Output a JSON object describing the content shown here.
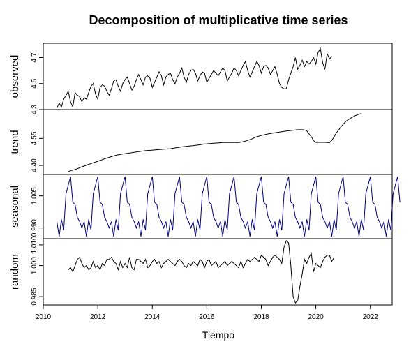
{
  "chart_data": {
    "type": "line",
    "title": "Decomposition of multiplicative time series",
    "xlabel": "Tiempo",
    "xlim": [
      2010,
      2022.8
    ],
    "x_ticks": [
      "2010",
      "2012",
      "2014",
      "2016",
      "2018",
      "2020",
      "2022"
    ],
    "x_tick_values": [
      2010,
      2012,
      2014,
      2016,
      2018,
      2020,
      2022
    ],
    "series_start": 2010.5,
    "series_frequency": 12,
    "panels": [
      {
        "name": "observed",
        "ylim": [
          4.3,
          4.81
        ],
        "y_ticks": [
          "4.3",
          "4.5",
          "4.7"
        ],
        "y_tick_values": [
          4.3,
          4.5,
          4.7
        ],
        "line_color": "#000000",
        "values": [
          4.31,
          4.35,
          4.32,
          4.38,
          4.41,
          4.44,
          4.36,
          4.32,
          4.43,
          4.41,
          4.4,
          4.36,
          4.39,
          4.38,
          4.43,
          4.48,
          4.5,
          4.42,
          4.38,
          4.47,
          4.49,
          4.48,
          4.44,
          4.41,
          4.46,
          4.52,
          4.53,
          4.48,
          4.44,
          4.5,
          4.53,
          4.55,
          4.5,
          4.45,
          4.48,
          4.53,
          4.57,
          4.53,
          4.49,
          4.55,
          4.56,
          4.54,
          4.47,
          4.51,
          4.55,
          4.59,
          4.56,
          4.49,
          4.55,
          4.57,
          4.58,
          4.53,
          4.5,
          4.55,
          4.58,
          4.62,
          4.55,
          4.51,
          4.57,
          4.6,
          4.61,
          4.58,
          4.52,
          4.56,
          4.59,
          4.58,
          4.51,
          4.54,
          4.57,
          4.6,
          4.58,
          4.56,
          4.59,
          4.62,
          4.6,
          4.52,
          4.55,
          4.58,
          4.62,
          4.6,
          4.56,
          4.6,
          4.64,
          4.67,
          4.6,
          4.55,
          4.59,
          4.63,
          4.67,
          4.64,
          4.58,
          4.63,
          4.64,
          4.62,
          4.57,
          4.6,
          4.63,
          4.57,
          4.5,
          4.47,
          4.46,
          4.46,
          4.53,
          4.58,
          4.63,
          4.7,
          4.61,
          4.64,
          4.68,
          4.63,
          4.67,
          4.65,
          4.67,
          4.7,
          4.65,
          4.74,
          4.77,
          4.66,
          4.61,
          4.73,
          4.69,
          4.71
        ]
      },
      {
        "name": "trend",
        "ylim": [
          4.35,
          4.71
        ],
        "y_ticks": [
          "4.40",
          "4.55"
        ],
        "y_tick_values": [
          4.4,
          4.55
        ],
        "line_color": "#000000",
        "start": 2010.9167,
        "values": [
          4.367,
          4.37,
          4.374,
          4.378,
          4.382,
          4.387,
          4.392,
          4.397,
          4.402,
          4.406,
          4.41,
          4.415,
          4.419,
          4.423,
          4.428,
          4.432,
          4.437,
          4.441,
          4.445,
          4.449,
          4.453,
          4.456,
          4.459,
          4.461,
          4.463,
          4.465,
          4.467,
          4.469,
          4.471,
          4.473,
          4.475,
          4.477,
          4.479,
          4.48,
          4.482,
          4.483,
          4.484,
          4.485,
          4.486,
          4.487,
          4.488,
          4.489,
          4.49,
          4.491,
          4.492,
          4.493,
          4.495,
          4.497,
          4.499,
          4.501,
          4.503,
          4.505,
          4.506,
          4.507,
          4.509,
          4.51,
          4.512,
          4.513,
          4.515,
          4.517,
          4.519,
          4.52,
          4.521,
          4.522,
          4.523,
          4.524,
          4.525,
          4.526,
          4.527,
          4.527,
          4.527,
          4.527,
          4.527,
          4.527,
          4.527,
          4.527,
          4.529,
          4.532,
          4.535,
          4.539,
          4.543,
          4.548,
          4.554,
          4.559,
          4.563,
          4.566,
          4.569,
          4.572,
          4.575,
          4.577,
          4.579,
          4.581,
          4.583,
          4.585,
          4.587,
          4.589,
          4.591,
          4.592,
          4.594,
          4.595,
          4.597,
          4.598,
          4.598,
          4.598,
          4.597,
          4.592,
          4.575,
          4.56,
          4.537,
          4.528,
          4.528,
          4.528,
          4.528,
          4.528,
          4.527,
          4.526,
          4.539,
          4.558,
          4.58,
          4.596,
          4.613,
          4.628,
          4.641,
          4.652,
          4.66,
          4.667,
          4.674,
          4.68,
          4.684,
          4.688
        ]
      },
      {
        "name": "seasonal",
        "ylim": [
          0.985,
          1.015
        ],
        "y_ticks": [
          "0.990",
          "1.005"
        ],
        "y_tick_values": [
          0.99,
          1.005
        ],
        "line_color": "#000080",
        "values": [
          0.993,
          0.986,
          0.994,
          0.989,
          1.006,
          1.01,
          1.014,
          1.002,
          1.001,
          0.995,
          0.993,
          0.99,
          0.993,
          0.986,
          0.994,
          0.989,
          1.006,
          1.01,
          1.014,
          1.002,
          1.001,
          0.995,
          0.993,
          0.99,
          0.993,
          0.986,
          0.994,
          0.989,
          1.006,
          1.01,
          1.014,
          1.002,
          1.001,
          0.995,
          0.993,
          0.99,
          0.993,
          0.986,
          0.994,
          0.989,
          1.006,
          1.01,
          1.014,
          1.002,
          1.001,
          0.995,
          0.993,
          0.99,
          0.993,
          0.986,
          0.994,
          0.989,
          1.006,
          1.01,
          1.014,
          1.002,
          1.001,
          0.995,
          0.993,
          0.99,
          0.993,
          0.986,
          0.994,
          0.989,
          1.006,
          1.01,
          1.014,
          1.002,
          1.001,
          0.995,
          0.993,
          0.99,
          0.993,
          0.986,
          0.994,
          0.989,
          1.006,
          1.01,
          1.014,
          1.002,
          1.001,
          0.995,
          0.993,
          0.99,
          0.993,
          0.986,
          0.994,
          0.989,
          1.006,
          1.01,
          1.014,
          1.002,
          1.001,
          0.995,
          0.993,
          0.99,
          0.993,
          0.986,
          0.994,
          0.989,
          1.006,
          1.01,
          1.014,
          1.002,
          1.001,
          0.995,
          0.993,
          0.99,
          0.993,
          0.986,
          0.994,
          0.989,
          1.006,
          1.01,
          1.014,
          1.002,
          1.001,
          0.995,
          0.993,
          0.99,
          0.993,
          0.986,
          0.994,
          0.989,
          1.006,
          1.01,
          1.014,
          1.002,
          1.001,
          0.995,
          0.993,
          0.99,
          0.993,
          0.986,
          0.994,
          0.989,
          1.006,
          1.01,
          1.014,
          1.002,
          1.001,
          0.995,
          0.993,
          0.99,
          0.993,
          0.986,
          0.994,
          0.989,
          1.006,
          1.01,
          1.014,
          1.002
        ]
      },
      {
        "name": "random",
        "ylim": [
          0.981,
          1.013
        ],
        "y_ticks": [
          "0.985",
          "1.000",
          "1.010"
        ],
        "y_tick_values": [
          0.985,
          1.0,
          1.01
        ],
        "line_color": "#000000",
        "start": 2010.9167,
        "values": [
          0.998,
          0.999,
          0.997,
          1.0,
          1.003,
          1.004,
          1.001,
          0.999,
          1.0,
          0.998,
          0.999,
          1.002,
          0.999,
          1.0,
          0.998,
          1.001,
          1.0,
          1.003,
          1.003,
          1.004,
          1.002,
          1.001,
          0.998,
          1.002,
          0.999,
          1.001,
          0.999,
          1.004,
          0.999,
          0.998,
          1.003,
          1.003,
          1.002,
          1.001,
          1.003,
          0.999,
          1.0,
          1.002,
          1.003,
          1.001,
          1.002,
          0.999,
          1.001,
          1.002,
          1.003,
          1.002,
          1.001,
          1.0,
          1.002,
          1.003,
          1.002,
          1.0,
          0.999,
          1.001,
          1.0,
          1.002,
          1.001,
          1.0,
          1.003,
          1.002,
          0.999,
          1.002,
          1.003,
          1.0,
          1.001,
          1.002,
          0.999,
          1.0,
          1.001,
          1.002,
          1.0,
          1.001,
          1.002,
          1.001,
          1.0,
          0.999,
          1.002,
          0.999,
          1.001,
          1.003,
          1.002,
          1.003,
          1.004,
          1.003,
          1.002,
          1.005,
          1.004,
          1.003,
          1.0,
          1.002,
          1.004,
          1.005,
          1.004,
          1.003,
          1.001,
          1.009,
          1.012,
          1.011,
          1.0,
          0.985,
          0.982,
          0.983,
          0.99,
          0.996,
          1.003,
          1.001,
          1.004,
          1.006,
          0.997,
          1.001,
          1.0,
          0.999,
          1.002,
          1.004,
          1.005,
          1.005,
          1.002,
          1.004
        ]
      }
    ]
  }
}
